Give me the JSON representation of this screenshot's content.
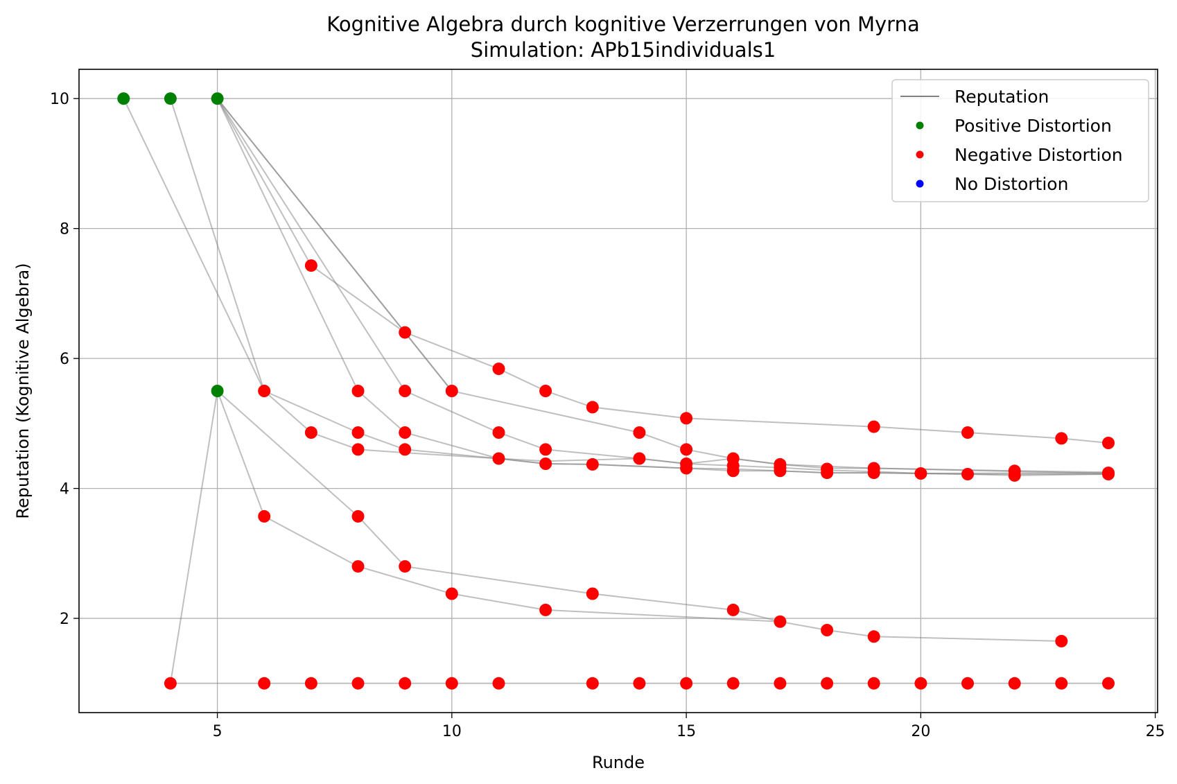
{
  "chart_data": {
    "type": "scatter",
    "title": "Kognitive Algebra durch kognitive Verzerrungen von Myrna",
    "subtitle": "Simulation: APb15individuals1",
    "xlabel": "Runde",
    "ylabel": "Reputation (Kognitive Algebra)",
    "xlim": [
      2.05,
      25.05
    ],
    "ylim": [
      0.55,
      10.45
    ],
    "xticks": [
      5,
      10,
      15,
      20,
      25
    ],
    "yticks": [
      2,
      4,
      6,
      8,
      10
    ],
    "grid": true,
    "legend_position": "top-right",
    "legend": [
      {
        "label": "Reputation",
        "kind": "line",
        "color": "#808080"
      },
      {
        "label": "Positive Distortion",
        "kind": "marker",
        "color": "#008000"
      },
      {
        "label": "Negative Distortion",
        "kind": "marker",
        "color": "#ff0000"
      },
      {
        "label": "No Distortion",
        "kind": "marker",
        "color": "#0000ff"
      }
    ],
    "colors": {
      "line": "#808080",
      "positive": "#008000",
      "negative": "#ff0000",
      "none": "#0000ff",
      "grid": "#b0b0b0"
    },
    "series": [
      {
        "points": [
          [
            3,
            10
          ],
          [
            6,
            5.5
          ],
          [
            7,
            4.86
          ],
          [
            8,
            4.6
          ],
          [
            9,
            4.55
          ],
          [
            11,
            4.46
          ],
          [
            12,
            4.38
          ],
          [
            13,
            4.37
          ],
          [
            15,
            4.31
          ],
          [
            16,
            4.27
          ],
          [
            17,
            4.27
          ],
          [
            18,
            4.24
          ],
          [
            19,
            4.24
          ],
          [
            20,
            4.23
          ],
          [
            21,
            4.22
          ],
          [
            24,
            4.22
          ]
        ]
      },
      {
        "points": [
          [
            4,
            10
          ],
          [
            6,
            5.5
          ],
          [
            8,
            4.86
          ],
          [
            9,
            4.6
          ],
          [
            11,
            4.46
          ],
          [
            12,
            4.38
          ],
          [
            13,
            4.37
          ],
          [
            15,
            4.31
          ],
          [
            16,
            4.3
          ],
          [
            18,
            4.24
          ],
          [
            19,
            4.24
          ],
          [
            20,
            4.23
          ],
          [
            21,
            4.22
          ],
          [
            22,
            4.2
          ],
          [
            24,
            4.22
          ]
        ]
      },
      {
        "points": [
          [
            5,
            10
          ],
          [
            8,
            5.5
          ],
          [
            9,
            4.86
          ],
          [
            11,
            4.46
          ],
          [
            12,
            4.42
          ],
          [
            14,
            4.46
          ],
          [
            15,
            4.38
          ],
          [
            16,
            4.35
          ],
          [
            17,
            4.32
          ],
          [
            18,
            4.28
          ],
          [
            19,
            4.26
          ],
          [
            20,
            4.23
          ],
          [
            24,
            4.24
          ]
        ]
      },
      {
        "points": [
          [
            5,
            10
          ],
          [
            9,
            5.5
          ],
          [
            11,
            4.86
          ],
          [
            12,
            4.6
          ],
          [
            14,
            4.46
          ],
          [
            15,
            4.38
          ],
          [
            16,
            4.46
          ],
          [
            17,
            4.37
          ],
          [
            18,
            4.31
          ],
          [
            19,
            4.31
          ],
          [
            22,
            4.27
          ],
          [
            24,
            4.25
          ]
        ]
      },
      {
        "points": [
          [
            5,
            10
          ],
          [
            10,
            5.5
          ],
          [
            14,
            4.86
          ],
          [
            15,
            4.6
          ],
          [
            16,
            4.46
          ],
          [
            17,
            4.37
          ],
          [
            19,
            4.31
          ],
          [
            24,
            4.23
          ]
        ]
      },
      {
        "points": [
          [
            5,
            10
          ],
          [
            9,
            6.4
          ],
          [
            11,
            5.84
          ],
          [
            12,
            5.5
          ],
          [
            13,
            5.25
          ],
          [
            15,
            5.08
          ],
          [
            19,
            4.95
          ],
          [
            21,
            4.86
          ],
          [
            23,
            4.77
          ],
          [
            24,
            4.7
          ]
        ]
      },
      {
        "points": [
          [
            5,
            10
          ],
          [
            7,
            7.43
          ],
          [
            9,
            6.4
          ],
          [
            10,
            5.5
          ]
        ]
      },
      {
        "points": [
          [
            4,
            1
          ],
          [
            5,
            5.5
          ],
          [
            6,
            3.57
          ],
          [
            8,
            2.8
          ],
          [
            10,
            2.38
          ],
          [
            12,
            2.13
          ],
          [
            17,
            1.95
          ]
        ]
      },
      {
        "points": [
          [
            5,
            5.5
          ],
          [
            8,
            3.57
          ],
          [
            9,
            2.8
          ],
          [
            13,
            2.38
          ],
          [
            16,
            2.13
          ],
          [
            17,
            1.95
          ],
          [
            18,
            1.82
          ],
          [
            19,
            1.72
          ],
          [
            23,
            1.65
          ]
        ]
      },
      {
        "points": [
          [
            4,
            1
          ],
          [
            6,
            1
          ],
          [
            7,
            1
          ],
          [
            8,
            1
          ],
          [
            9,
            1
          ],
          [
            10,
            1
          ],
          [
            11,
            1
          ],
          [
            13,
            1
          ],
          [
            14,
            1
          ],
          [
            15,
            1
          ],
          [
            16,
            1
          ],
          [
            17,
            1
          ],
          [
            18,
            1
          ],
          [
            19,
            1
          ],
          [
            20,
            1
          ],
          [
            21,
            1
          ],
          [
            22,
            1
          ],
          [
            23,
            1
          ],
          [
            24,
            1
          ]
        ]
      }
    ],
    "positive_points": [
      [
        3,
        10
      ],
      [
        4,
        10
      ],
      [
        5,
        10
      ],
      [
        5,
        5.5
      ]
    ],
    "negative_points": [
      [
        7,
        7.43
      ],
      [
        9,
        6.4
      ],
      [
        11,
        5.84
      ],
      [
        12,
        5.5
      ],
      [
        13,
        5.25
      ],
      [
        15,
        5.08
      ],
      [
        19,
        4.95
      ],
      [
        21,
        4.86
      ],
      [
        23,
        4.77
      ],
      [
        24,
        4.7
      ],
      [
        6,
        5.5
      ],
      [
        8,
        5.5
      ],
      [
        9,
        5.5
      ],
      [
        10,
        5.5
      ],
      [
        7,
        4.86
      ],
      [
        8,
        4.86
      ],
      [
        9,
        4.86
      ],
      [
        11,
        4.86
      ],
      [
        14,
        4.86
      ],
      [
        8,
        4.6
      ],
      [
        9,
        4.6
      ],
      [
        12,
        4.6
      ],
      [
        15,
        4.6
      ],
      [
        11,
        4.46
      ],
      [
        14,
        4.46
      ],
      [
        16,
        4.46
      ],
      [
        12,
        4.38
      ],
      [
        13,
        4.37
      ],
      [
        15,
        4.38
      ],
      [
        15,
        4.31
      ],
      [
        16,
        4.35
      ],
      [
        16,
        4.27
      ],
      [
        17,
        4.37
      ],
      [
        17,
        4.32
      ],
      [
        17,
        4.27
      ],
      [
        18,
        4.3
      ],
      [
        18,
        4.24
      ],
      [
        19,
        4.31
      ],
      [
        19,
        4.24
      ],
      [
        20,
        4.23
      ],
      [
        21,
        4.22
      ],
      [
        22,
        4.27
      ],
      [
        22,
        4.2
      ],
      [
        24,
        4.24
      ],
      [
        24,
        4.22
      ],
      [
        6,
        3.57
      ],
      [
        8,
        3.57
      ],
      [
        8,
        2.8
      ],
      [
        9,
        2.8
      ],
      [
        10,
        2.38
      ],
      [
        13,
        2.38
      ],
      [
        12,
        2.13
      ],
      [
        16,
        2.13
      ],
      [
        17,
        1.95
      ],
      [
        18,
        1.82
      ],
      [
        19,
        1.72
      ],
      [
        23,
        1.65
      ],
      [
        4,
        1
      ],
      [
        6,
        1
      ],
      [
        7,
        1
      ],
      [
        8,
        1
      ],
      [
        9,
        1
      ],
      [
        10,
        1
      ],
      [
        11,
        1
      ],
      [
        13,
        1
      ],
      [
        14,
        1
      ],
      [
        15,
        1
      ],
      [
        16,
        1
      ],
      [
        17,
        1
      ],
      [
        18,
        1
      ],
      [
        19,
        1
      ],
      [
        20,
        1
      ],
      [
        21,
        1
      ],
      [
        22,
        1
      ],
      [
        23,
        1
      ],
      [
        24,
        1
      ]
    ],
    "neutral_points": []
  }
}
